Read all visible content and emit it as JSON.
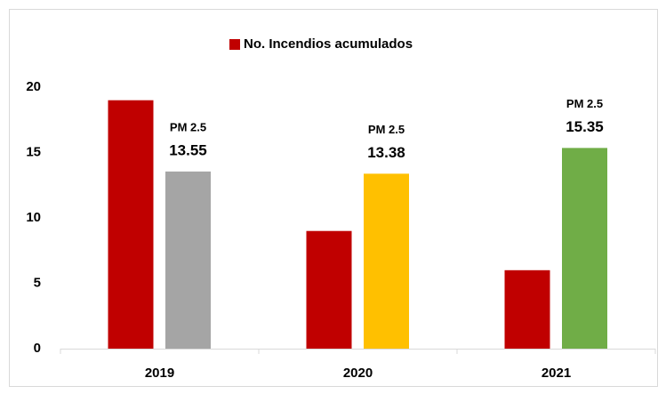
{
  "chart_data": {
    "type": "bar",
    "categories": [
      "2019",
      "2020",
      "2021"
    ],
    "series": [
      {
        "name": "No. Incendios acumulados",
        "color": "#c00000",
        "values": [
          19,
          9,
          6
        ],
        "show_in_legend": true
      },
      {
        "name": "PM 2.5",
        "colors": [
          "#a5a5a5",
          "#ffc000",
          "#70ad47"
        ],
        "values": [
          13.55,
          13.38,
          15.35
        ],
        "show_in_legend": false,
        "labels": true
      }
    ],
    "ylim": [
      0,
      20
    ],
    "yticks": [
      0,
      5,
      10,
      15,
      20
    ],
    "grid": false,
    "legend": "top"
  }
}
